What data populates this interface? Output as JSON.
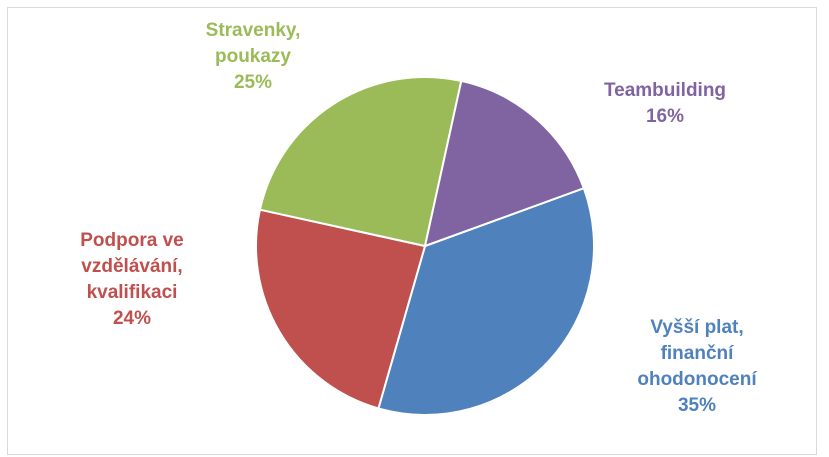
{
  "chart_data": {
    "type": "pie",
    "title": "",
    "slices": [
      {
        "name_lines": [
          "Vyšší plat,",
          "finanční",
          "ohodonocení"
        ],
        "percent_label": "35%",
        "value": 35,
        "color": "#4f81bd"
      },
      {
        "name_lines": [
          "Podpora ve",
          "vzdělávání,",
          "kvalifikaci"
        ],
        "percent_label": "24%",
        "value": 24,
        "color": "#c0504d"
      },
      {
        "name_lines": [
          "Stravenky,",
          "poukazy"
        ],
        "percent_label": "25%",
        "value": 25,
        "color": "#9bbb59"
      },
      {
        "name_lines": [
          "Teambuilding"
        ],
        "percent_label": "16%",
        "value": 16,
        "color": "#8064a2"
      }
    ],
    "legend": "none",
    "data_labels": "outside"
  }
}
